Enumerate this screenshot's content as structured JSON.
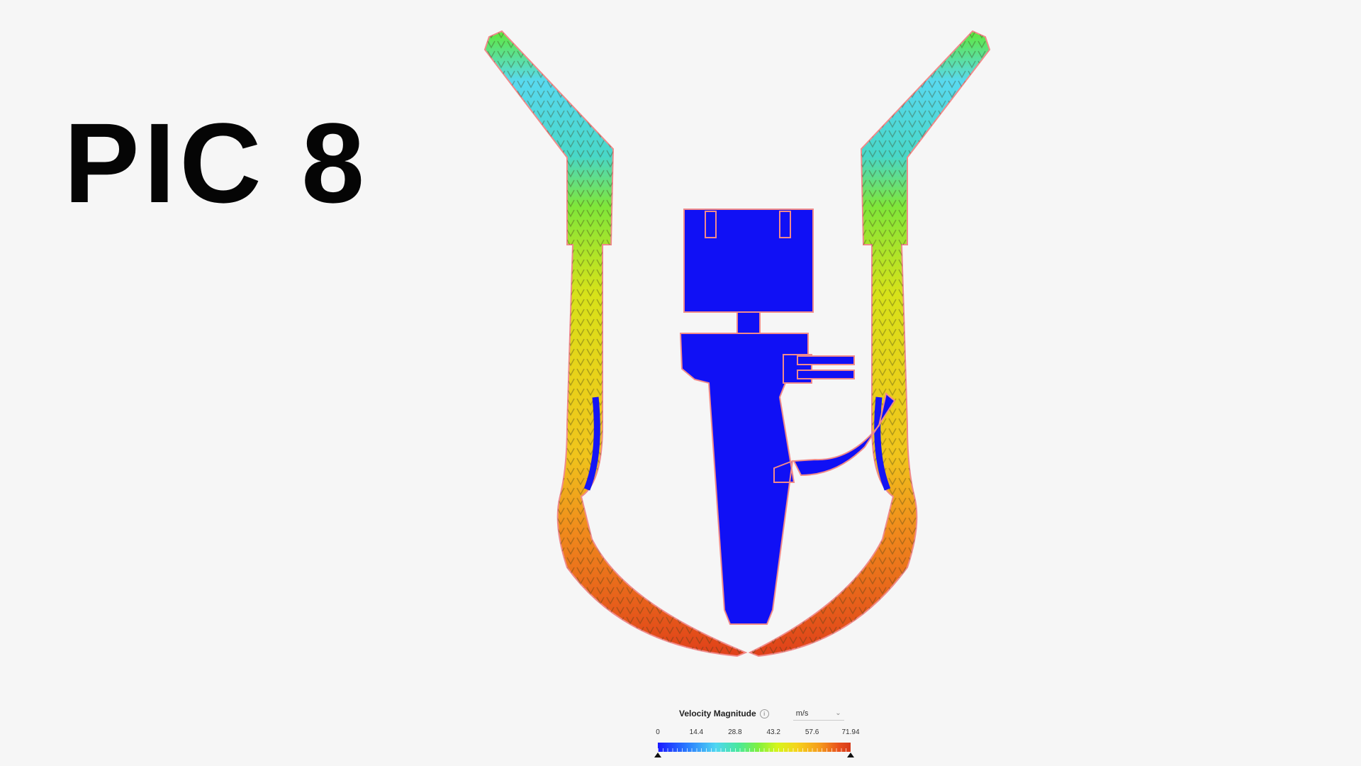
{
  "title": "PIC 8",
  "legend": {
    "title": "Velocity Magnitude",
    "info_icon": "info-icon",
    "unit": "m/s",
    "ticks": [
      "0",
      "14.4",
      "28.8",
      "43.2",
      "57.6",
      "71.94"
    ],
    "range": [
      0,
      71.94
    ],
    "colors": [
      "#1a1aff",
      "#4fd6f2",
      "#7ff040",
      "#f5d41c",
      "#d63a1a"
    ]
  }
}
